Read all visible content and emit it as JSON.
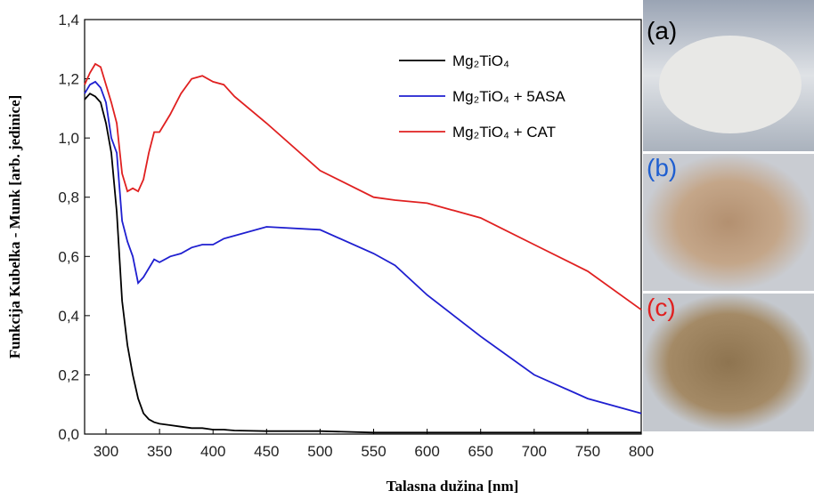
{
  "chart_data": {
    "type": "line",
    "x_label": "Talasna dužina [nm]",
    "y_label": "Funkcija Kubelka - Munk [arb. jedinice]",
    "x": [
      280,
      285,
      290,
      295,
      300,
      305,
      310,
      315,
      320,
      325,
      330,
      335,
      340,
      345,
      350,
      360,
      370,
      380,
      390,
      400,
      410,
      420,
      450,
      500,
      550,
      570,
      600,
      650,
      700,
      750,
      800
    ],
    "series": [
      {
        "name": "Mg₂TiO₄",
        "color": "#000000",
        "values": [
          1.13,
          1.15,
          1.14,
          1.12,
          1.05,
          0.95,
          0.75,
          0.45,
          0.3,
          0.2,
          0.12,
          0.07,
          0.05,
          0.04,
          0.035,
          0.03,
          0.025,
          0.02,
          0.02,
          0.015,
          0.015,
          0.012,
          0.01,
          0.01,
          0.005,
          0.005,
          0.005,
          0.005,
          0.005,
          0.005,
          0.005
        ]
      },
      {
        "name": "Mg₂TiO₄ + 5ASA",
        "color": "#1f1fd0",
        "values": [
          1.15,
          1.18,
          1.19,
          1.17,
          1.12,
          1.0,
          0.95,
          0.72,
          0.65,
          0.6,
          0.51,
          0.53,
          0.56,
          0.59,
          0.58,
          0.6,
          0.61,
          0.63,
          0.64,
          0.64,
          0.66,
          0.67,
          0.7,
          0.69,
          0.61,
          0.57,
          0.47,
          0.33,
          0.2,
          0.12,
          0.07
        ]
      },
      {
        "name": "Mg₂TiO₄ + CAT",
        "color": "#e02020",
        "values": [
          1.18,
          1.22,
          1.25,
          1.24,
          1.18,
          1.12,
          1.05,
          0.88,
          0.82,
          0.83,
          0.82,
          0.86,
          0.95,
          1.02,
          1.02,
          1.08,
          1.15,
          1.2,
          1.21,
          1.19,
          1.18,
          1.14,
          1.05,
          0.89,
          0.8,
          0.79,
          0.78,
          0.73,
          0.64,
          0.55,
          0.42
        ]
      }
    ],
    "xlim": [
      280,
      800
    ],
    "xticks": [
      300,
      350,
      400,
      450,
      500,
      550,
      600,
      650,
      700,
      750,
      800
    ],
    "ylim": [
      0,
      1.4
    ],
    "yticks": [
      {
        "value": 0,
        "label": "0,0"
      },
      {
        "value": 0.2,
        "label": "0,2"
      },
      {
        "value": 0.4,
        "label": "0,4"
      },
      {
        "value": 0.6,
        "label": "0,6"
      },
      {
        "value": 0.8,
        "label": "0,8"
      },
      {
        "value": 1.0,
        "label": "1,0"
      },
      {
        "value": 1.2,
        "label": "1,2"
      },
      {
        "value": 1.4,
        "label": "1,4"
      }
    ],
    "photo_labels": [
      {
        "text": "(a)",
        "color": "#000000"
      },
      {
        "text": "(b)",
        "color": "#1f5fd0"
      },
      {
        "text": "(c)",
        "color": "#e02020"
      }
    ]
  }
}
